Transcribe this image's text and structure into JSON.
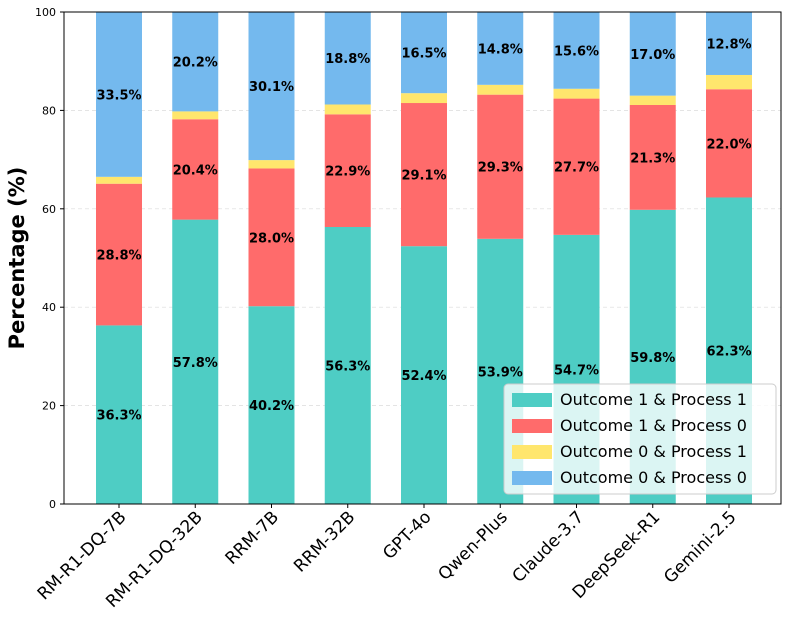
{
  "chart_data": {
    "type": "bar",
    "stacked": true,
    "title": "",
    "xlabel": "",
    "ylabel": "Percentage (%)",
    "ylim": [
      0,
      100
    ],
    "yticks": [
      0,
      20,
      40,
      60,
      80,
      100
    ],
    "grid": "horizontal dashed",
    "legend_position": "bottom-right",
    "categories": [
      "RM-R1-DQ-7B",
      "RM-R1-DQ-32B",
      "RRM-7B",
      "RRM-32B",
      "GPT-4o",
      "Qwen-Plus",
      "Claude-3.7",
      "DeepSeek-R1",
      "Gemini-2.5"
    ],
    "series": [
      {
        "name": "Outcome 1 & Process 1",
        "color": "#4ECDC4",
        "labeled": true,
        "values": [
          36.3,
          57.8,
          40.2,
          56.3,
          52.4,
          53.9,
          54.7,
          59.8,
          62.3
        ]
      },
      {
        "name": "Outcome 1 & Process 0",
        "color": "#FF6B6B",
        "labeled": true,
        "values": [
          28.8,
          20.4,
          28.0,
          22.9,
          29.1,
          29.3,
          27.7,
          21.3,
          22.0
        ]
      },
      {
        "name": "Outcome 0 & Process 1",
        "color": "#FFE66D",
        "labeled": false,
        "values": [
          1.4,
          1.6,
          1.7,
          2.0,
          2.0,
          2.0,
          2.0,
          1.9,
          2.9
        ]
      },
      {
        "name": "Outcome 0 & Process 0",
        "color": "#74B9EE",
        "labeled": true,
        "values": [
          33.5,
          20.2,
          30.1,
          18.8,
          16.5,
          14.8,
          15.6,
          17.0,
          12.8
        ]
      }
    ]
  }
}
